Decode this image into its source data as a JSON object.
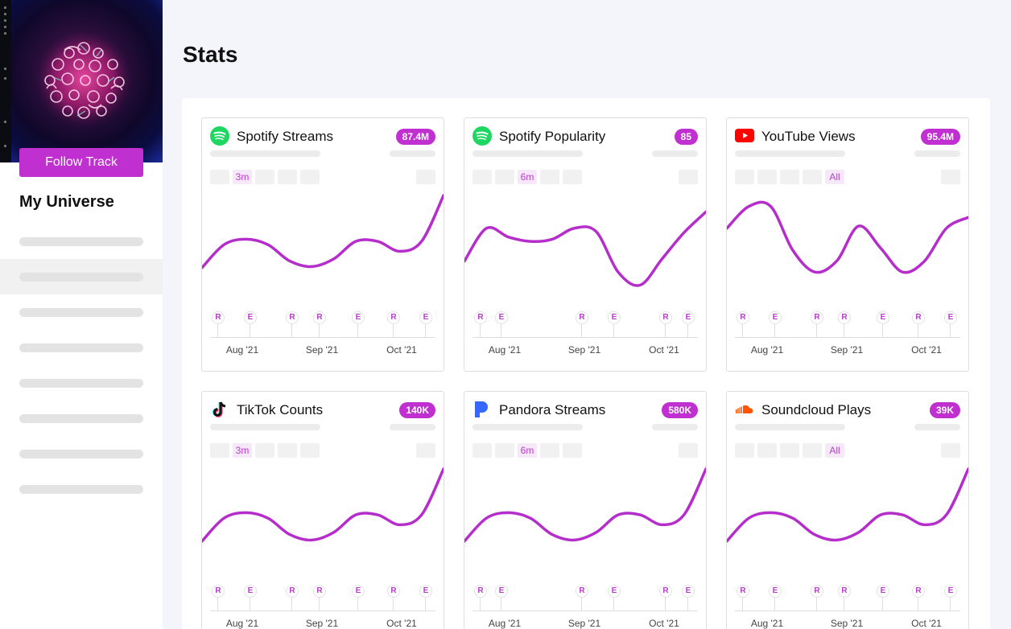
{
  "sidebar": {
    "follow_label": "Follow Track",
    "title": "My Universe",
    "active_index": 1
  },
  "page": {
    "title": "Stats"
  },
  "colors": {
    "accent": "#c02fd0",
    "line": "#b52ecb",
    "spotify": "#1ed760",
    "youtube": "#ff0000",
    "pandora": "#3668ff",
    "soundcloud": "#ff5500"
  },
  "ranges_count": 5,
  "x_ticks": [
    "Aug '21",
    "Sep '21",
    "Oct '21"
  ],
  "cards": [
    {
      "title": "Spotify Streams",
      "badge": "87.4M",
      "icon": "spotify-icon",
      "selected_range": {
        "index": 1,
        "label": "3m"
      },
      "markers": [
        "R",
        "E",
        "R",
        "R",
        "E",
        "R",
        "E"
      ],
      "line": [
        0.34,
        0.55,
        0.6,
        0.55,
        0.4,
        0.35,
        0.42,
        0.58,
        0.58,
        0.49,
        0.58,
        1.0
      ]
    },
    {
      "title": "Spotify Popularity",
      "badge": "85",
      "icon": "spotify-icon",
      "selected_range": {
        "index": 2,
        "label": "6m"
      },
      "markers": [
        "R",
        "E",
        "R",
        "E",
        "R",
        "E"
      ],
      "line": [
        0.4,
        0.7,
        0.62,
        0.58,
        0.6,
        0.7,
        0.67,
        0.3,
        0.18,
        0.42,
        0.66,
        0.85
      ]
    },
    {
      "title": "YouTube Views",
      "badge": "95.4M",
      "icon": "youtube-icon",
      "selected_range": {
        "index": 4,
        "label": "All"
      },
      "markers": [
        "R",
        "E",
        "R",
        "R",
        "E",
        "R",
        "E"
      ],
      "line": [
        0.7,
        0.9,
        0.9,
        0.5,
        0.3,
        0.4,
        0.72,
        0.52,
        0.3,
        0.4,
        0.7,
        0.8
      ]
    },
    {
      "title": "TikTok Counts",
      "badge": "140K",
      "icon": "tiktok-icon",
      "selected_range": {
        "index": 1,
        "label": "3m"
      },
      "markers": [
        "R",
        "E",
        "R",
        "R",
        "E",
        "R",
        "E"
      ],
      "line": [
        0.34,
        0.55,
        0.6,
        0.55,
        0.4,
        0.35,
        0.42,
        0.58,
        0.58,
        0.49,
        0.58,
        1.0
      ]
    },
    {
      "title": "Pandora Streams",
      "badge": "580K",
      "icon": "pandora-icon",
      "selected_range": {
        "index": 2,
        "label": "6m"
      },
      "markers": [
        "R",
        "E",
        "R",
        "E",
        "R",
        "E"
      ],
      "line": [
        0.34,
        0.55,
        0.6,
        0.55,
        0.4,
        0.35,
        0.42,
        0.58,
        0.58,
        0.49,
        0.58,
        1.0
      ]
    },
    {
      "title": "Soundcloud Plays",
      "badge": "39K",
      "icon": "soundcloud-icon",
      "selected_range": {
        "index": 4,
        "label": "All"
      },
      "markers": [
        "R",
        "E",
        "R",
        "R",
        "E",
        "R",
        "E"
      ],
      "line": [
        0.34,
        0.55,
        0.6,
        0.55,
        0.4,
        0.35,
        0.42,
        0.58,
        0.58,
        0.49,
        0.58,
        1.0
      ]
    }
  ]
}
